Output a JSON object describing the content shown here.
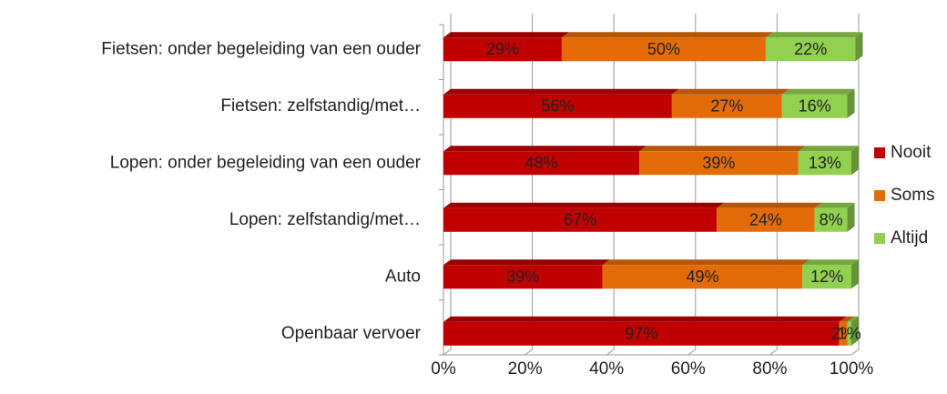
{
  "chart_data": {
    "type": "stacked-bar-horizontal",
    "categories": [
      "Fietsen: onder begeleiding van een ouder",
      "Fietsen: zelfstandig/met…",
      "Lopen: onder begeleiding van een ouder",
      "Lopen: zelfstandig/met…",
      "Auto",
      "Openbaar vervoer"
    ],
    "series": [
      {
        "name": "Nooit",
        "color": "#c00000",
        "values": [
          29,
          56,
          48,
          67,
          39,
          97
        ],
        "value_labels": [
          "29%",
          "56%",
          "48%",
          "67%",
          "39%",
          "97%"
        ]
      },
      {
        "name": "Soms",
        "color": "#e36c09",
        "values": [
          50,
          27,
          39,
          24,
          49,
          2
        ],
        "value_labels": [
          "50%",
          "27%",
          "39%",
          "24%",
          "49%",
          "2%"
        ]
      },
      {
        "name": "Altijd",
        "color": "#92d050",
        "values": [
          22,
          16,
          13,
          8,
          12,
          1
        ],
        "value_labels": [
          "22%",
          "16%",
          "13%",
          "8%",
          "12%",
          "1%"
        ]
      }
    ],
    "xlim": [
      0,
      100
    ],
    "xticks": [
      {
        "value": 0,
        "label": "0%"
      },
      {
        "value": 20,
        "label": "20%"
      },
      {
        "value": 40,
        "label": "40%"
      },
      {
        "value": 60,
        "label": "60%"
      },
      {
        "value": 80,
        "label": "80%"
      },
      {
        "value": 100,
        "label": "100%"
      }
    ],
    "grid": true,
    "legend": "right"
  }
}
